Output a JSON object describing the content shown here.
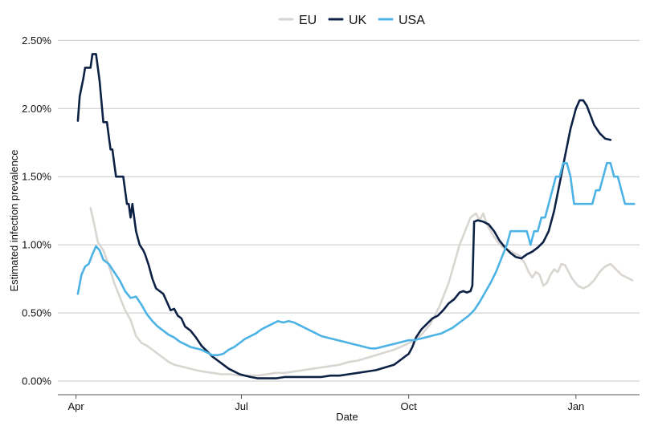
{
  "chart_data": {
    "type": "line",
    "title": "",
    "xlabel": "Date",
    "ylabel": "Estimated infection prevalence",
    "x_ticks": [
      {
        "label": "Apr",
        "day": 0
      },
      {
        "label": "Jul",
        "day": 91
      },
      {
        "label": "Oct",
        "day": 183
      },
      {
        "label": "Jan",
        "day": 275
      }
    ],
    "x_range_days": [
      -10,
      310
    ],
    "y_ticks": [
      "0.00%",
      "0.50%",
      "1.00%",
      "1.50%",
      "2.00%",
      "2.50%"
    ],
    "ylim": [
      -0.1,
      2.62
    ],
    "grid": "horizontal",
    "legend_position": "top-center",
    "series": [
      {
        "name": "EU",
        "color": "#d9d6d1",
        "points": [
          [
            8,
            1.27
          ],
          [
            10,
            1.15
          ],
          [
            12,
            1.02
          ],
          [
            15,
            0.96
          ],
          [
            18,
            0.85
          ],
          [
            21,
            0.72
          ],
          [
            24,
            0.62
          ],
          [
            27,
            0.52
          ],
          [
            30,
            0.45
          ],
          [
            33,
            0.33
          ],
          [
            36,
            0.28
          ],
          [
            39,
            0.26
          ],
          [
            42,
            0.23
          ],
          [
            45,
            0.2
          ],
          [
            48,
            0.17
          ],
          [
            51,
            0.14
          ],
          [
            54,
            0.12
          ],
          [
            57,
            0.11
          ],
          [
            60,
            0.1
          ],
          [
            63,
            0.09
          ],
          [
            66,
            0.08
          ],
          [
            70,
            0.07
          ],
          [
            75,
            0.06
          ],
          [
            80,
            0.05
          ],
          [
            85,
            0.05
          ],
          [
            90,
            0.04
          ],
          [
            95,
            0.04
          ],
          [
            100,
            0.04
          ],
          [
            105,
            0.05
          ],
          [
            110,
            0.06
          ],
          [
            115,
            0.06
          ],
          [
            120,
            0.07
          ],
          [
            125,
            0.08
          ],
          [
            130,
            0.09
          ],
          [
            135,
            0.1
          ],
          [
            140,
            0.11
          ],
          [
            145,
            0.12
          ],
          [
            150,
            0.14
          ],
          [
            155,
            0.15
          ],
          [
            160,
            0.17
          ],
          [
            165,
            0.19
          ],
          [
            170,
            0.21
          ],
          [
            175,
            0.23
          ],
          [
            180,
            0.26
          ],
          [
            185,
            0.29
          ],
          [
            190,
            0.34
          ],
          [
            195,
            0.42
          ],
          [
            200,
            0.55
          ],
          [
            205,
            0.72
          ],
          [
            208,
            0.86
          ],
          [
            211,
            1.0
          ],
          [
            214,
            1.1
          ],
          [
            217,
            1.2
          ],
          [
            220,
            1.23
          ],
          [
            222,
            1.18
          ],
          [
            224,
            1.23
          ],
          [
            226,
            1.15
          ],
          [
            229,
            1.08
          ],
          [
            232,
            1.02
          ],
          [
            235,
            0.98
          ],
          [
            238,
            0.96
          ],
          [
            241,
            0.94
          ],
          [
            244,
            0.92
          ],
          [
            247,
            0.86
          ],
          [
            249,
            0.8
          ],
          [
            251,
            0.76
          ],
          [
            253,
            0.8
          ],
          [
            255,
            0.78
          ],
          [
            257,
            0.7
          ],
          [
            259,
            0.72
          ],
          [
            261,
            0.78
          ],
          [
            263,
            0.82
          ],
          [
            265,
            0.8
          ],
          [
            267,
            0.86
          ],
          [
            269,
            0.85
          ],
          [
            271,
            0.8
          ],
          [
            273,
            0.75
          ],
          [
            276,
            0.7
          ],
          [
            279,
            0.68
          ],
          [
            282,
            0.7
          ],
          [
            285,
            0.74
          ],
          [
            288,
            0.8
          ],
          [
            291,
            0.84
          ],
          [
            294,
            0.86
          ],
          [
            297,
            0.82
          ],
          [
            300,
            0.78
          ],
          [
            303,
            0.76
          ],
          [
            306,
            0.74
          ]
        ]
      },
      {
        "name": "UK",
        "color": "#0d2145",
        "points": [
          [
            1,
            1.91
          ],
          [
            2,
            2.09
          ],
          [
            4,
            2.22
          ],
          [
            5,
            2.3
          ],
          [
            8,
            2.3
          ],
          [
            9,
            2.4
          ],
          [
            11,
            2.4
          ],
          [
            12,
            2.3
          ],
          [
            13,
            2.2
          ],
          [
            14,
            2.05
          ],
          [
            15,
            1.9
          ],
          [
            17,
            1.9
          ],
          [
            18,
            1.8
          ],
          [
            19,
            1.7
          ],
          [
            20,
            1.7
          ],
          [
            21,
            1.6
          ],
          [
            22,
            1.5
          ],
          [
            26,
            1.5
          ],
          [
            27,
            1.4
          ],
          [
            28,
            1.3
          ],
          [
            29,
            1.3
          ],
          [
            30,
            1.2
          ],
          [
            31,
            1.3
          ],
          [
            32,
            1.2
          ],
          [
            33,
            1.1
          ],
          [
            35,
            1.0
          ],
          [
            37,
            0.96
          ],
          [
            38,
            0.93
          ],
          [
            40,
            0.85
          ],
          [
            42,
            0.75
          ],
          [
            44,
            0.68
          ],
          [
            46,
            0.66
          ],
          [
            48,
            0.64
          ],
          [
            50,
            0.58
          ],
          [
            52,
            0.52
          ],
          [
            54,
            0.53
          ],
          [
            56,
            0.48
          ],
          [
            58,
            0.46
          ],
          [
            60,
            0.4
          ],
          [
            63,
            0.37
          ],
          [
            66,
            0.32
          ],
          [
            69,
            0.26
          ],
          [
            72,
            0.22
          ],
          [
            75,
            0.18
          ],
          [
            78,
            0.15
          ],
          [
            81,
            0.12
          ],
          [
            84,
            0.09
          ],
          [
            87,
            0.07
          ],
          [
            90,
            0.05
          ],
          [
            93,
            0.04
          ],
          [
            96,
            0.03
          ],
          [
            100,
            0.02
          ],
          [
            105,
            0.02
          ],
          [
            110,
            0.02
          ],
          [
            115,
            0.03
          ],
          [
            120,
            0.03
          ],
          [
            125,
            0.03
          ],
          [
            130,
            0.03
          ],
          [
            135,
            0.03
          ],
          [
            140,
            0.04
          ],
          [
            145,
            0.04
          ],
          [
            150,
            0.05
          ],
          [
            155,
            0.06
          ],
          [
            160,
            0.07
          ],
          [
            165,
            0.08
          ],
          [
            170,
            0.1
          ],
          [
            175,
            0.12
          ],
          [
            178,
            0.15
          ],
          [
            181,
            0.18
          ],
          [
            183,
            0.2
          ],
          [
            185,
            0.25
          ],
          [
            187,
            0.32
          ],
          [
            190,
            0.38
          ],
          [
            193,
            0.42
          ],
          [
            196,
            0.46
          ],
          [
            199,
            0.48
          ],
          [
            202,
            0.52
          ],
          [
            205,
            0.57
          ],
          [
            208,
            0.6
          ],
          [
            211,
            0.65
          ],
          [
            213,
            0.66
          ],
          [
            215,
            0.65
          ],
          [
            217,
            0.66
          ],
          [
            218,
            0.7
          ],
          [
            219,
            1.17
          ],
          [
            221,
            1.18
          ],
          [
            224,
            1.17
          ],
          [
            227,
            1.15
          ],
          [
            230,
            1.1
          ],
          [
            233,
            1.03
          ],
          [
            236,
            0.98
          ],
          [
            239,
            0.94
          ],
          [
            242,
            0.91
          ],
          [
            245,
            0.9
          ],
          [
            248,
            0.93
          ],
          [
            251,
            0.95
          ],
          [
            254,
            0.98
          ],
          [
            257,
            1.02
          ],
          [
            260,
            1.1
          ],
          [
            263,
            1.25
          ],
          [
            266,
            1.45
          ],
          [
            269,
            1.65
          ],
          [
            272,
            1.85
          ],
          [
            275,
            2.0
          ],
          [
            277,
            2.06
          ],
          [
            279,
            2.06
          ],
          [
            281,
            2.02
          ],
          [
            283,
            1.95
          ],
          [
            285,
            1.88
          ],
          [
            288,
            1.82
          ],
          [
            291,
            1.78
          ],
          [
            294,
            1.77
          ]
        ]
      },
      {
        "name": "USA",
        "color": "#4cb3e4",
        "points": [
          [
            1,
            0.64
          ],
          [
            3,
            0.78
          ],
          [
            5,
            0.84
          ],
          [
            7,
            0.86
          ],
          [
            9,
            0.93
          ],
          [
            11,
            0.99
          ],
          [
            13,
            0.96
          ],
          [
            15,
            0.89
          ],
          [
            18,
            0.86
          ],
          [
            21,
            0.8
          ],
          [
            24,
            0.74
          ],
          [
            27,
            0.66
          ],
          [
            30,
            0.61
          ],
          [
            33,
            0.62
          ],
          [
            36,
            0.56
          ],
          [
            39,
            0.49
          ],
          [
            42,
            0.44
          ],
          [
            45,
            0.4
          ],
          [
            48,
            0.37
          ],
          [
            51,
            0.34
          ],
          [
            54,
            0.32
          ],
          [
            57,
            0.29
          ],
          [
            60,
            0.27
          ],
          [
            63,
            0.25
          ],
          [
            66,
            0.24
          ],
          [
            69,
            0.23
          ],
          [
            72,
            0.21
          ],
          [
            75,
            0.19
          ],
          [
            78,
            0.19
          ],
          [
            81,
            0.2
          ],
          [
            84,
            0.23
          ],
          [
            87,
            0.25
          ],
          [
            90,
            0.28
          ],
          [
            93,
            0.31
          ],
          [
            96,
            0.33
          ],
          [
            99,
            0.35
          ],
          [
            102,
            0.38
          ],
          [
            105,
            0.4
          ],
          [
            108,
            0.42
          ],
          [
            111,
            0.44
          ],
          [
            114,
            0.43
          ],
          [
            117,
            0.44
          ],
          [
            120,
            0.43
          ],
          [
            123,
            0.41
          ],
          [
            126,
            0.39
          ],
          [
            129,
            0.37
          ],
          [
            132,
            0.35
          ],
          [
            135,
            0.33
          ],
          [
            138,
            0.32
          ],
          [
            141,
            0.31
          ],
          [
            144,
            0.3
          ],
          [
            147,
            0.29
          ],
          [
            150,
            0.28
          ],
          [
            153,
            0.27
          ],
          [
            156,
            0.26
          ],
          [
            159,
            0.25
          ],
          [
            162,
            0.24
          ],
          [
            165,
            0.24
          ],
          [
            168,
            0.25
          ],
          [
            171,
            0.26
          ],
          [
            174,
            0.27
          ],
          [
            177,
            0.28
          ],
          [
            180,
            0.29
          ],
          [
            183,
            0.3
          ],
          [
            186,
            0.3
          ],
          [
            189,
            0.31
          ],
          [
            192,
            0.32
          ],
          [
            195,
            0.33
          ],
          [
            198,
            0.34
          ],
          [
            201,
            0.35
          ],
          [
            204,
            0.37
          ],
          [
            207,
            0.39
          ],
          [
            210,
            0.42
          ],
          [
            213,
            0.45
          ],
          [
            216,
            0.48
          ],
          [
            219,
            0.52
          ],
          [
            222,
            0.58
          ],
          [
            225,
            0.65
          ],
          [
            228,
            0.72
          ],
          [
            231,
            0.8
          ],
          [
            234,
            0.9
          ],
          [
            237,
            1.0
          ],
          [
            239,
            1.1
          ],
          [
            242,
            1.1
          ],
          [
            245,
            1.1
          ],
          [
            248,
            1.1
          ],
          [
            250,
            1.0
          ],
          [
            252,
            1.1
          ],
          [
            254,
            1.1
          ],
          [
            256,
            1.2
          ],
          [
            258,
            1.2
          ],
          [
            260,
            1.3
          ],
          [
            262,
            1.4
          ],
          [
            264,
            1.5
          ],
          [
            266,
            1.5
          ],
          [
            268,
            1.6
          ],
          [
            270,
            1.6
          ],
          [
            272,
            1.5
          ],
          [
            274,
            1.3
          ],
          [
            276,
            1.3
          ],
          [
            278,
            1.3
          ],
          [
            280,
            1.3
          ],
          [
            282,
            1.3
          ],
          [
            284,
            1.3
          ],
          [
            286,
            1.4
          ],
          [
            288,
            1.4
          ],
          [
            290,
            1.5
          ],
          [
            292,
            1.6
          ],
          [
            294,
            1.6
          ],
          [
            296,
            1.5
          ],
          [
            298,
            1.5
          ],
          [
            300,
            1.4
          ],
          [
            302,
            1.3
          ],
          [
            304,
            1.3
          ],
          [
            307,
            1.3
          ]
        ]
      }
    ]
  }
}
